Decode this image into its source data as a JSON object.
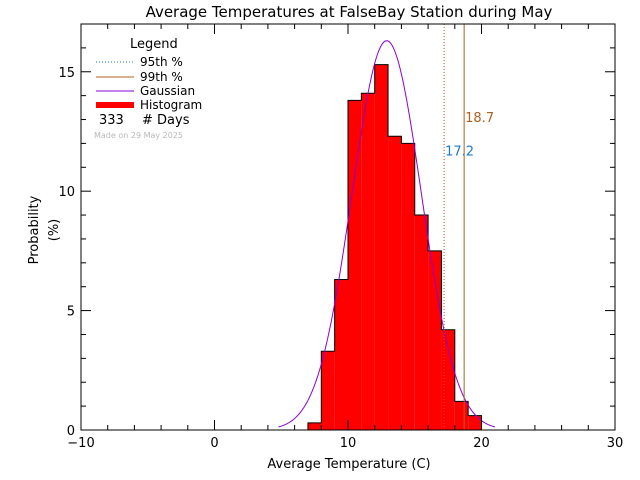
{
  "chart_data": {
    "type": "bar",
    "title": "Average Temperatures at FalseBay Station during May",
    "xlabel": "Average Temperature (C)",
    "ylabel": "Probability",
    "ylabel_unit": "(%)",
    "xlim": [
      -10,
      30
    ],
    "ylim": [
      0,
      17
    ],
    "xticks": [
      -10,
      0,
      10,
      20,
      30
    ],
    "yticks": [
      0,
      5,
      10,
      15
    ],
    "bin_width": 1,
    "bins": [
      {
        "x0": 7,
        "x1": 8,
        "value": 0.3
      },
      {
        "x0": 8,
        "x1": 9,
        "value": 3.3
      },
      {
        "x0": 9,
        "x1": 10,
        "value": 6.3
      },
      {
        "x0": 10,
        "x1": 11,
        "value": 13.8
      },
      {
        "x0": 11,
        "x1": 12,
        "value": 14.1
      },
      {
        "x0": 12,
        "x1": 13,
        "value": 15.3
      },
      {
        "x0": 13,
        "x1": 14,
        "value": 12.3
      },
      {
        "x0": 14,
        "x1": 15,
        "value": 12.0
      },
      {
        "x0": 15,
        "x1": 16,
        "value": 9.0
      },
      {
        "x0": 16,
        "x1": 17,
        "value": 7.5
      },
      {
        "x0": 17,
        "x1": 18,
        "value": 4.2
      },
      {
        "x0": 18,
        "x1": 19,
        "value": 1.2
      },
      {
        "x0": 19,
        "x1": 20,
        "value": 0.6
      }
    ],
    "gaussian": {
      "mean": 12.9,
      "sigma": 2.6,
      "peak": 16.3,
      "xrange": [
        4.8,
        21.0
      ]
    },
    "percentiles": {
      "p95": {
        "value": 17.2,
        "label": "17.2",
        "color": "#d0501a"
      },
      "p99": {
        "value": 18.7,
        "label": "18.7",
        "color": "#b06020"
      }
    },
    "colors": {
      "histogram": "#ff0000",
      "gaussian": "#8a00d4",
      "p95_legend": "#1a7ad0",
      "p95_label": "#1a7ad0",
      "p99": "#b06020",
      "axis": "#000000",
      "watermark": "#b8b8b8"
    },
    "legend": {
      "title": "Legend",
      "items": [
        {
          "label": "95th %",
          "style": "dotted"
        },
        {
          "label": "99th %",
          "style": "solid"
        },
        {
          "label": "Gaussian",
          "style": "line"
        },
        {
          "label": "Histogram",
          "style": "thick"
        }
      ],
      "days_count": "333",
      "days_label": "# Days",
      "watermark": "Made on 29 May 2025"
    }
  }
}
